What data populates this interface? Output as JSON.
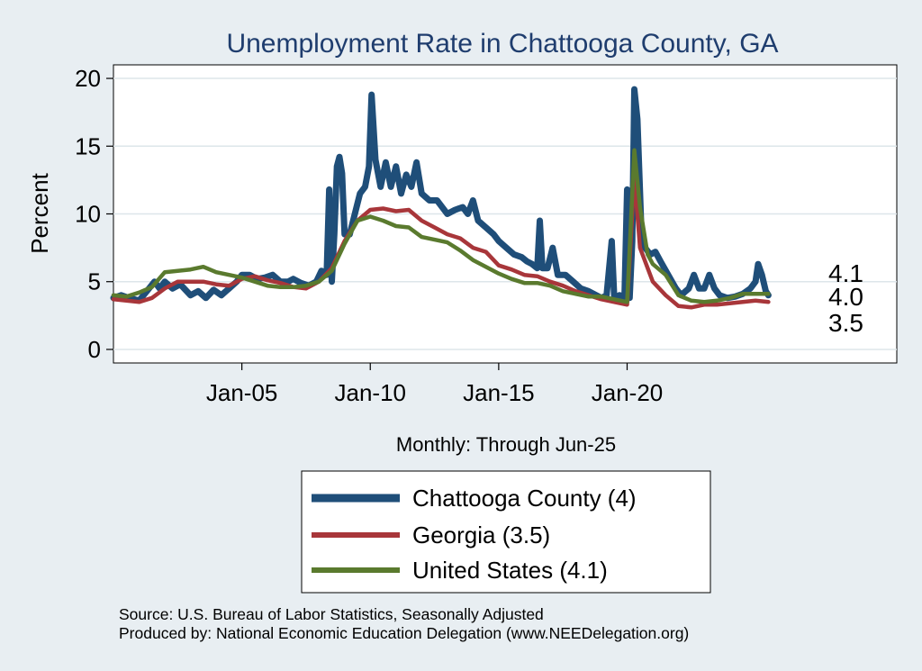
{
  "chart_data": {
    "type": "line",
    "title": "Unemployment Rate in Chattooga  County, GA",
    "ylabel": "Percent",
    "xlabel": "Monthly: Through Jun-25",
    "ylim": [
      -1,
      21
    ],
    "xlim": [
      2000.0,
      2030.5
    ],
    "yticks": [
      0,
      5,
      10,
      15,
      20
    ],
    "xticks": [
      {
        "label": "Jan-05",
        "value": 2005
      },
      {
        "label": "Jan-10",
        "value": 2010
      },
      {
        "label": "Jan-15",
        "value": 2015
      },
      {
        "label": "Jan-20",
        "value": 2020
      }
    ],
    "series": [
      {
        "name": "Chattooga County",
        "legend": "Chattooga  County (4)",
        "color": "#1f4e79",
        "end_label": "4.0",
        "points": [
          [
            2000.0,
            3.8
          ],
          [
            2000.3,
            4.0
          ],
          [
            2000.6,
            3.8
          ],
          [
            2001.0,
            3.6
          ],
          [
            2001.3,
            4.3
          ],
          [
            2001.6,
            5.0
          ],
          [
            2001.8,
            4.5
          ],
          [
            2002.0,
            5.0
          ],
          [
            2002.3,
            4.5
          ],
          [
            2002.6,
            4.8
          ],
          [
            2003.0,
            4.0
          ],
          [
            2003.3,
            4.3
          ],
          [
            2003.6,
            3.8
          ],
          [
            2003.9,
            4.4
          ],
          [
            2004.2,
            4.0
          ],
          [
            2004.5,
            4.5
          ],
          [
            2004.8,
            5.0
          ],
          [
            2005.0,
            5.5
          ],
          [
            2005.3,
            5.5
          ],
          [
            2005.6,
            5.2
          ],
          [
            2005.9,
            5.3
          ],
          [
            2006.2,
            5.5
          ],
          [
            2006.5,
            5.0
          ],
          [
            2006.8,
            5.0
          ],
          [
            2007.0,
            5.2
          ],
          [
            2007.3,
            4.9
          ],
          [
            2007.6,
            4.7
          ],
          [
            2007.9,
            5.0
          ],
          [
            2008.1,
            5.8
          ],
          [
            2008.3,
            5.5
          ],
          [
            2008.4,
            11.8
          ],
          [
            2008.5,
            5.0
          ],
          [
            2008.6,
            8.5
          ],
          [
            2008.7,
            13.5
          ],
          [
            2008.8,
            14.2
          ],
          [
            2008.9,
            13.0
          ],
          [
            2009.0,
            8.5
          ],
          [
            2009.2,
            8.5
          ],
          [
            2009.4,
            10.0
          ],
          [
            2009.6,
            11.5
          ],
          [
            2009.8,
            12.0
          ],
          [
            2009.95,
            13.5
          ],
          [
            2010.05,
            18.8
          ],
          [
            2010.2,
            14.0
          ],
          [
            2010.4,
            12.0
          ],
          [
            2010.6,
            13.8
          ],
          [
            2010.8,
            12.0
          ],
          [
            2011.0,
            13.5
          ],
          [
            2011.2,
            11.5
          ],
          [
            2011.4,
            12.9
          ],
          [
            2011.6,
            12.0
          ],
          [
            2011.8,
            13.8
          ],
          [
            2012.0,
            11.5
          ],
          [
            2012.3,
            11.0
          ],
          [
            2012.6,
            11.0
          ],
          [
            2012.8,
            10.5
          ],
          [
            2013.0,
            10.0
          ],
          [
            2013.3,
            10.3
          ],
          [
            2013.6,
            10.5
          ],
          [
            2013.8,
            10.0
          ],
          [
            2014.0,
            11.0
          ],
          [
            2014.2,
            9.5
          ],
          [
            2014.5,
            9.0
          ],
          [
            2014.8,
            8.5
          ],
          [
            2015.0,
            8.0
          ],
          [
            2015.3,
            7.5
          ],
          [
            2015.6,
            7.0
          ],
          [
            2015.9,
            6.8
          ],
          [
            2016.1,
            6.5
          ],
          [
            2016.3,
            6.3
          ],
          [
            2016.5,
            6.0
          ],
          [
            2016.6,
            9.5
          ],
          [
            2016.7,
            6.0
          ],
          [
            2016.9,
            6.0
          ],
          [
            2017.1,
            7.5
          ],
          [
            2017.3,
            5.5
          ],
          [
            2017.6,
            5.5
          ],
          [
            2017.9,
            5.0
          ],
          [
            2018.2,
            4.5
          ],
          [
            2018.5,
            4.3
          ],
          [
            2018.8,
            4.0
          ],
          [
            2019.0,
            3.8
          ],
          [
            2019.2,
            4.0
          ],
          [
            2019.4,
            8.0
          ],
          [
            2019.5,
            3.8
          ],
          [
            2019.7,
            4.0
          ],
          [
            2019.9,
            3.9
          ],
          [
            2020.0,
            11.8
          ],
          [
            2020.1,
            3.8
          ],
          [
            2020.2,
            8.0
          ],
          [
            2020.28,
            19.2
          ],
          [
            2020.4,
            17.0
          ],
          [
            2020.55,
            9.0
          ],
          [
            2020.7,
            7.5
          ],
          [
            2020.9,
            7.0
          ],
          [
            2021.1,
            7.2
          ],
          [
            2021.3,
            6.5
          ],
          [
            2021.6,
            5.5
          ],
          [
            2021.9,
            4.5
          ],
          [
            2022.1,
            4.0
          ],
          [
            2022.4,
            4.5
          ],
          [
            2022.6,
            5.5
          ],
          [
            2022.8,
            4.5
          ],
          [
            2023.0,
            4.5
          ],
          [
            2023.2,
            5.5
          ],
          [
            2023.4,
            4.5
          ],
          [
            2023.6,
            4.0
          ],
          [
            2023.9,
            3.8
          ],
          [
            2024.2,
            3.9
          ],
          [
            2024.5,
            4.1
          ],
          [
            2024.8,
            4.5
          ],
          [
            2025.0,
            5.0
          ],
          [
            2025.1,
            6.3
          ],
          [
            2025.25,
            5.5
          ],
          [
            2025.4,
            4.3
          ],
          [
            2025.5,
            4.0
          ]
        ]
      },
      {
        "name": "Georgia",
        "legend": "Georgia (3.5)",
        "color": "#a8363a",
        "end_label": "3.5",
        "points": [
          [
            2000.0,
            3.7
          ],
          [
            2000.5,
            3.6
          ],
          [
            2001.0,
            3.5
          ],
          [
            2001.5,
            3.8
          ],
          [
            2002.0,
            4.5
          ],
          [
            2002.5,
            5.0
          ],
          [
            2003.0,
            5.0
          ],
          [
            2003.5,
            5.0
          ],
          [
            2004.0,
            4.8
          ],
          [
            2004.5,
            4.7
          ],
          [
            2005.0,
            5.2
          ],
          [
            2005.5,
            5.4
          ],
          [
            2006.0,
            5.1
          ],
          [
            2006.5,
            4.9
          ],
          [
            2007.0,
            4.6
          ],
          [
            2007.5,
            4.5
          ],
          [
            2008.0,
            5.0
          ],
          [
            2008.5,
            6.0
          ],
          [
            2009.0,
            8.0
          ],
          [
            2009.5,
            9.5
          ],
          [
            2010.0,
            10.3
          ],
          [
            2010.5,
            10.4
          ],
          [
            2011.0,
            10.2
          ],
          [
            2011.5,
            10.3
          ],
          [
            2012.0,
            9.5
          ],
          [
            2012.5,
            9.0
          ],
          [
            2013.0,
            8.5
          ],
          [
            2013.5,
            8.2
          ],
          [
            2014.0,
            7.5
          ],
          [
            2014.5,
            7.2
          ],
          [
            2015.0,
            6.2
          ],
          [
            2015.5,
            5.9
          ],
          [
            2016.0,
            5.5
          ],
          [
            2016.5,
            5.4
          ],
          [
            2017.0,
            5.0
          ],
          [
            2017.5,
            4.7
          ],
          [
            2018.0,
            4.3
          ],
          [
            2018.5,
            4.0
          ],
          [
            2019.0,
            3.7
          ],
          [
            2019.5,
            3.5
          ],
          [
            2020.0,
            3.3
          ],
          [
            2020.28,
            12.8
          ],
          [
            2020.5,
            7.5
          ],
          [
            2020.8,
            6.0
          ],
          [
            2021.0,
            5.0
          ],
          [
            2021.5,
            4.0
          ],
          [
            2022.0,
            3.2
          ],
          [
            2022.5,
            3.1
          ],
          [
            2023.0,
            3.3
          ],
          [
            2023.5,
            3.3
          ],
          [
            2024.0,
            3.4
          ],
          [
            2024.5,
            3.5
          ],
          [
            2025.0,
            3.6
          ],
          [
            2025.5,
            3.5
          ]
        ]
      },
      {
        "name": "United States",
        "legend": "United States (4.1)",
        "color": "#5a7a2e",
        "end_label": "4.1",
        "points": [
          [
            2000.0,
            4.0
          ],
          [
            2000.5,
            3.9
          ],
          [
            2001.0,
            4.2
          ],
          [
            2001.5,
            4.6
          ],
          [
            2002.0,
            5.7
          ],
          [
            2002.5,
            5.8
          ],
          [
            2003.0,
            5.9
          ],
          [
            2003.5,
            6.1
          ],
          [
            2004.0,
            5.7
          ],
          [
            2004.5,
            5.5
          ],
          [
            2005.0,
            5.3
          ],
          [
            2005.5,
            5.0
          ],
          [
            2006.0,
            4.7
          ],
          [
            2006.5,
            4.6
          ],
          [
            2007.0,
            4.6
          ],
          [
            2007.5,
            4.7
          ],
          [
            2008.0,
            5.0
          ],
          [
            2008.5,
            5.8
          ],
          [
            2009.0,
            7.8
          ],
          [
            2009.5,
            9.5
          ],
          [
            2010.0,
            9.8
          ],
          [
            2010.5,
            9.5
          ],
          [
            2011.0,
            9.1
          ],
          [
            2011.5,
            9.0
          ],
          [
            2012.0,
            8.3
          ],
          [
            2012.5,
            8.1
          ],
          [
            2013.0,
            7.9
          ],
          [
            2013.5,
            7.3
          ],
          [
            2014.0,
            6.6
          ],
          [
            2014.5,
            6.1
          ],
          [
            2015.0,
            5.6
          ],
          [
            2015.5,
            5.2
          ],
          [
            2016.0,
            4.9
          ],
          [
            2016.5,
            4.9
          ],
          [
            2017.0,
            4.7
          ],
          [
            2017.5,
            4.3
          ],
          [
            2018.0,
            4.1
          ],
          [
            2018.5,
            3.9
          ],
          [
            2019.0,
            3.9
          ],
          [
            2019.5,
            3.7
          ],
          [
            2020.0,
            3.5
          ],
          [
            2020.28,
            14.7
          ],
          [
            2020.5,
            10.5
          ],
          [
            2020.8,
            7.0
          ],
          [
            2021.0,
            6.3
          ],
          [
            2021.5,
            5.5
          ],
          [
            2022.0,
            4.0
          ],
          [
            2022.5,
            3.6
          ],
          [
            2023.0,
            3.5
          ],
          [
            2023.5,
            3.6
          ],
          [
            2024.0,
            3.8
          ],
          [
            2024.5,
            4.1
          ],
          [
            2025.0,
            4.1
          ],
          [
            2025.5,
            4.1
          ]
        ]
      }
    ]
  },
  "footer": {
    "source": "Source: U.S. Bureau of Labor Statistics, Seasonally Adjusted",
    "produced_by": "Produced by: National Economic Education Delegation (www.NEEDelegation.org)"
  }
}
